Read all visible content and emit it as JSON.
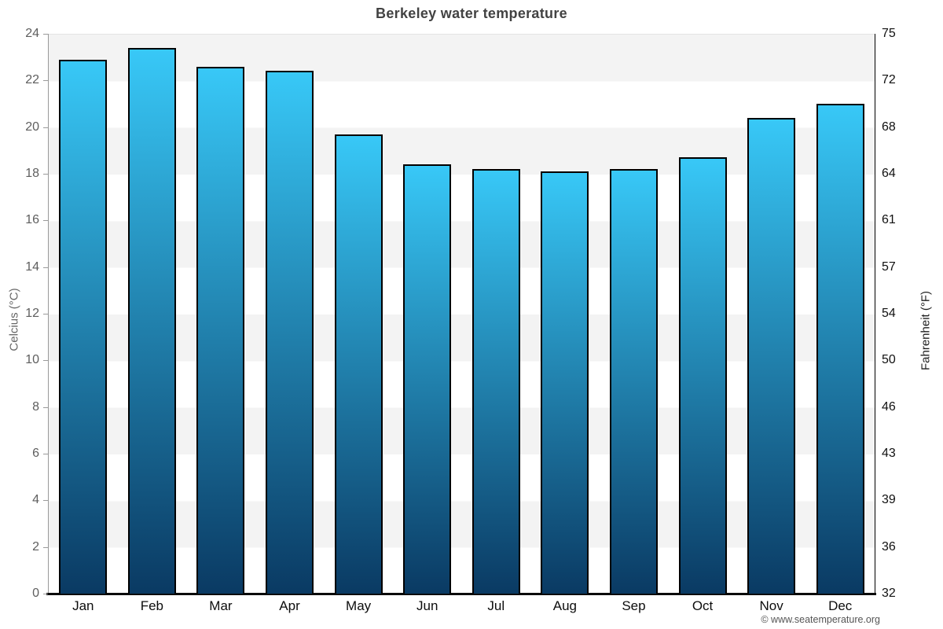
{
  "page": {
    "footer_credit": "© www.seatemperature.org"
  },
  "chart_data": {
    "type": "bar",
    "title": "Berkeley water temperature",
    "categories": [
      "Jan",
      "Feb",
      "Mar",
      "Apr",
      "May",
      "Jun",
      "Jul",
      "Aug",
      "Sep",
      "Oct",
      "Nov",
      "Dec"
    ],
    "values": [
      22.9,
      23.4,
      22.6,
      22.4,
      19.7,
      18.4,
      18.2,
      18.1,
      18.2,
      18.7,
      20.4,
      21.0
    ],
    "series_name": "Water temperature (°C)",
    "xlabel": "",
    "ylabel_left": "Celcius (°C)",
    "ylabel_right": "Fahrenheit (°F)",
    "ylim": [
      0,
      24
    ],
    "yticks_celsius": [
      0,
      2,
      4,
      6,
      8,
      10,
      12,
      14,
      16,
      18,
      20,
      22,
      24
    ],
    "yticks_fahrenheit": [
      32,
      36,
      39,
      43,
      46,
      50,
      54,
      57,
      61,
      64,
      68,
      72,
      75
    ],
    "grid": "alternating horizontal bands",
    "legend": "none",
    "colors": {
      "bar_gradient_top": "#38c8f7",
      "bar_gradient_bottom": "#0a3a63",
      "bar_border": "#000000",
      "band_even": "#f3f3f3",
      "band_odd": "#ffffff",
      "title_text": "#424242",
      "left_axis_text": "#5e5e5e",
      "right_axis_text": "#111111",
      "bottom_axis_line": "#0b0b0b"
    }
  }
}
